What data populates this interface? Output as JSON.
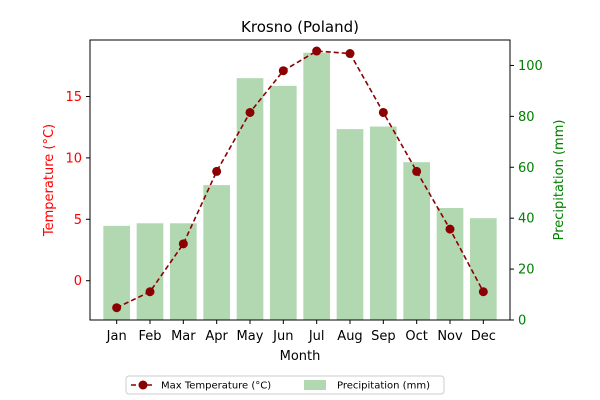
{
  "chart_data": {
    "type": "bar",
    "title": "Krosno (Poland)",
    "xlabel": "Month",
    "ylabel_left": "Temperature (°C)",
    "ylabel_right": "Precipitation (mm)",
    "categories": [
      "Jan",
      "Feb",
      "Mar",
      "Apr",
      "May",
      "Jun",
      "Jul",
      "Aug",
      "Sep",
      "Oct",
      "Nov",
      "Dec"
    ],
    "series": [
      {
        "name": "Max Temperature (°C)",
        "chart": "line",
        "axis": "left",
        "color": "#8b0000",
        "values": [
          -2.2,
          -0.9,
          3.0,
          8.9,
          13.7,
          17.1,
          18.7,
          18.5,
          13.7,
          8.9,
          4.2,
          -0.9
        ]
      },
      {
        "name": "Precipitation (mm)",
        "chart": "bar",
        "axis": "right",
        "color": "#b2d8b2",
        "values": [
          37,
          38,
          38,
          53,
          95,
          92,
          105,
          75,
          76,
          62,
          44,
          40
        ]
      }
    ],
    "ylim_left": [
      -3.2,
      19.6
    ],
    "yticks_left": [
      0,
      5,
      10,
      15
    ],
    "ylim_right": [
      0,
      110
    ],
    "yticks_right": [
      0,
      20,
      40,
      60,
      80,
      100
    ],
    "left_axis_color": "#ff0000",
    "right_axis_color": "#008000",
    "legend_placement": "bottom-center",
    "grid": false
  }
}
